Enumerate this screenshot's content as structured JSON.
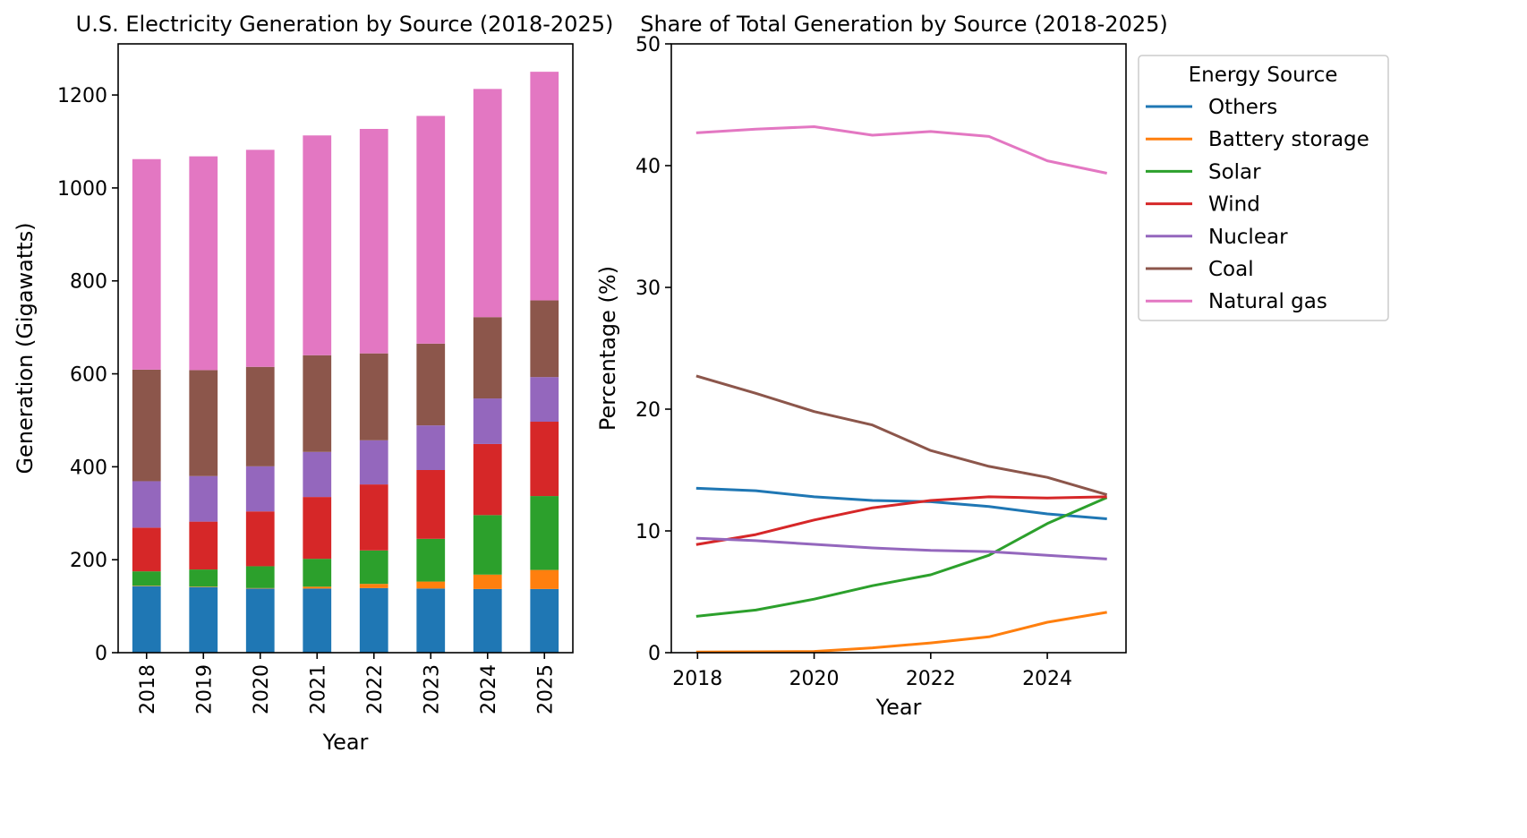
{
  "colors": {
    "Others": "#1f77b4",
    "Battery storage": "#ff7f0e",
    "Solar": "#2ca02c",
    "Wind": "#d62728",
    "Nuclear": "#9467bd",
    "Coal": "#8c564b",
    "Natural gas": "#e377c2"
  },
  "chart_data": [
    {
      "type": "bar",
      "stacked": true,
      "title": "U.S. Electricity Generation by Source (2018-2025)",
      "xlabel": "Year",
      "ylabel": "Generation (Gigawatts)",
      "ylim": [
        0,
        1310
      ],
      "yticks": [
        0,
        200,
        400,
        600,
        800,
        1000,
        1200
      ],
      "categories": [
        "2018",
        "2019",
        "2020",
        "2021",
        "2022",
        "2023",
        "2024",
        "2025"
      ],
      "series": [
        {
          "name": "Others",
          "values": [
            143,
            141,
            138,
            138,
            139,
            138,
            137,
            137
          ]
        },
        {
          "name": "Battery storage",
          "values": [
            1,
            1,
            1,
            4,
            9,
            15,
            31,
            41
          ]
        },
        {
          "name": "Solar",
          "values": [
            31,
            37,
            47,
            60,
            72,
            92,
            128,
            159
          ]
        },
        {
          "name": "Wind",
          "values": [
            94,
            103,
            118,
            133,
            142,
            148,
            153,
            160
          ]
        },
        {
          "name": "Nuclear",
          "values": [
            100,
            98,
            97,
            97,
            95,
            96,
            98,
            96
          ]
        },
        {
          "name": "Coal",
          "values": [
            240,
            228,
            214,
            208,
            187,
            176,
            175,
            165
          ]
        },
        {
          "name": "Natural gas",
          "values": [
            453,
            460,
            467,
            473,
            483,
            490,
            491,
            492
          ]
        }
      ],
      "grid": false
    },
    {
      "type": "line",
      "title": "Share of Total Generation by Source (2018-2025)",
      "xlabel": "Year",
      "ylabel": "Percentage (%)",
      "xlim": [
        2017.55,
        2025.35
      ],
      "ylim": [
        0,
        50
      ],
      "xticks": [
        2018,
        2020,
        2022,
        2024
      ],
      "yticks": [
        0,
        10,
        20,
        30,
        40,
        50
      ],
      "x": [
        2018,
        2019,
        2020,
        2021,
        2022,
        2023,
        2024,
        2025
      ],
      "series": [
        {
          "name": "Others",
          "values": [
            13.5,
            13.3,
            12.8,
            12.5,
            12.4,
            12.0,
            11.4,
            11.0
          ]
        },
        {
          "name": "Battery storage",
          "values": [
            0.05,
            0.07,
            0.1,
            0.4,
            0.8,
            1.3,
            2.5,
            3.3
          ]
        },
        {
          "name": "Solar",
          "values": [
            3.0,
            3.5,
            4.4,
            5.5,
            6.4,
            8.0,
            10.6,
            12.7
          ]
        },
        {
          "name": "Wind",
          "values": [
            8.9,
            9.7,
            10.9,
            11.9,
            12.5,
            12.8,
            12.7,
            12.8
          ]
        },
        {
          "name": "Nuclear",
          "values": [
            9.4,
            9.2,
            8.9,
            8.6,
            8.4,
            8.3,
            8.0,
            7.7
          ]
        },
        {
          "name": "Coal",
          "values": [
            22.7,
            21.3,
            19.8,
            18.7,
            16.6,
            15.3,
            14.4,
            13.0
          ]
        },
        {
          "name": "Natural gas",
          "values": [
            42.7,
            43.0,
            43.2,
            42.5,
            42.8,
            42.4,
            40.4,
            39.4
          ]
        }
      ],
      "legend": {
        "title": "Energy Source",
        "placement": "outside upper right",
        "entries": [
          "Others",
          "Battery storage",
          "Solar",
          "Wind",
          "Nuclear",
          "Coal",
          "Natural gas"
        ]
      },
      "grid": false
    }
  ]
}
